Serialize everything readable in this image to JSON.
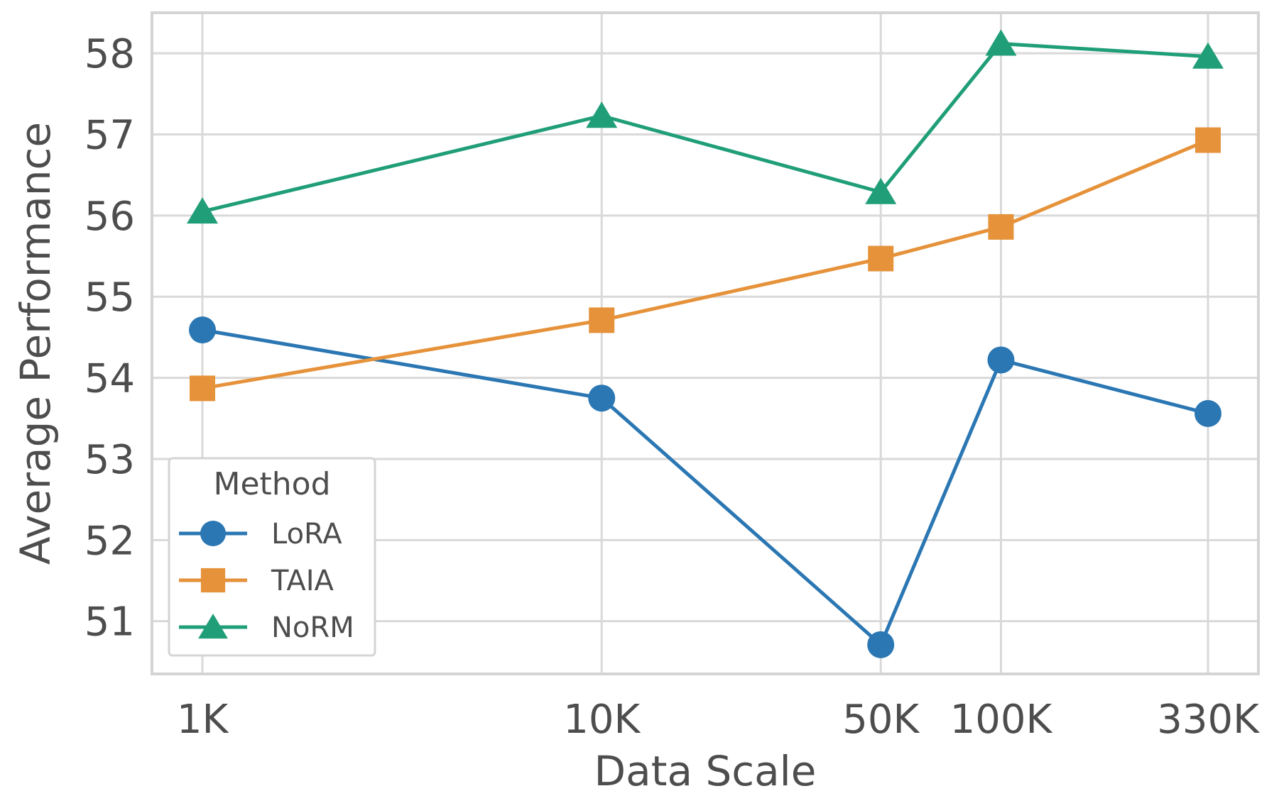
{
  "chart_data": {
    "type": "line",
    "categories": [
      "1K",
      "10K",
      "50K",
      "100K",
      "330K"
    ],
    "x": [
      1000,
      10000,
      50000,
      100000,
      330000
    ],
    "x_scale": "log",
    "xlabel": "Data Scale",
    "ylabel": "Average Performance",
    "ylim": [
      50.35,
      58.5
    ],
    "yticks": [
      "51",
      "52",
      "53",
      "54",
      "55",
      "56",
      "57",
      "58"
    ],
    "grid": true,
    "legend": {
      "title": "Method",
      "placement": "lower-left"
    },
    "series": [
      {
        "name": "LoRA",
        "color": "#2b77b3",
        "marker": "circle",
        "values": [
          54.59,
          53.75,
          50.71,
          54.22,
          53.56
        ]
      },
      {
        "name": "TAIA",
        "color": "#e6923a",
        "marker": "square",
        "values": [
          53.87,
          54.71,
          55.47,
          55.86,
          56.93
        ]
      },
      {
        "name": "NoRM",
        "color": "#1f9e77",
        "marker": "triangle",
        "values": [
          56.05,
          57.23,
          56.29,
          58.12,
          57.96
        ]
      }
    ]
  }
}
